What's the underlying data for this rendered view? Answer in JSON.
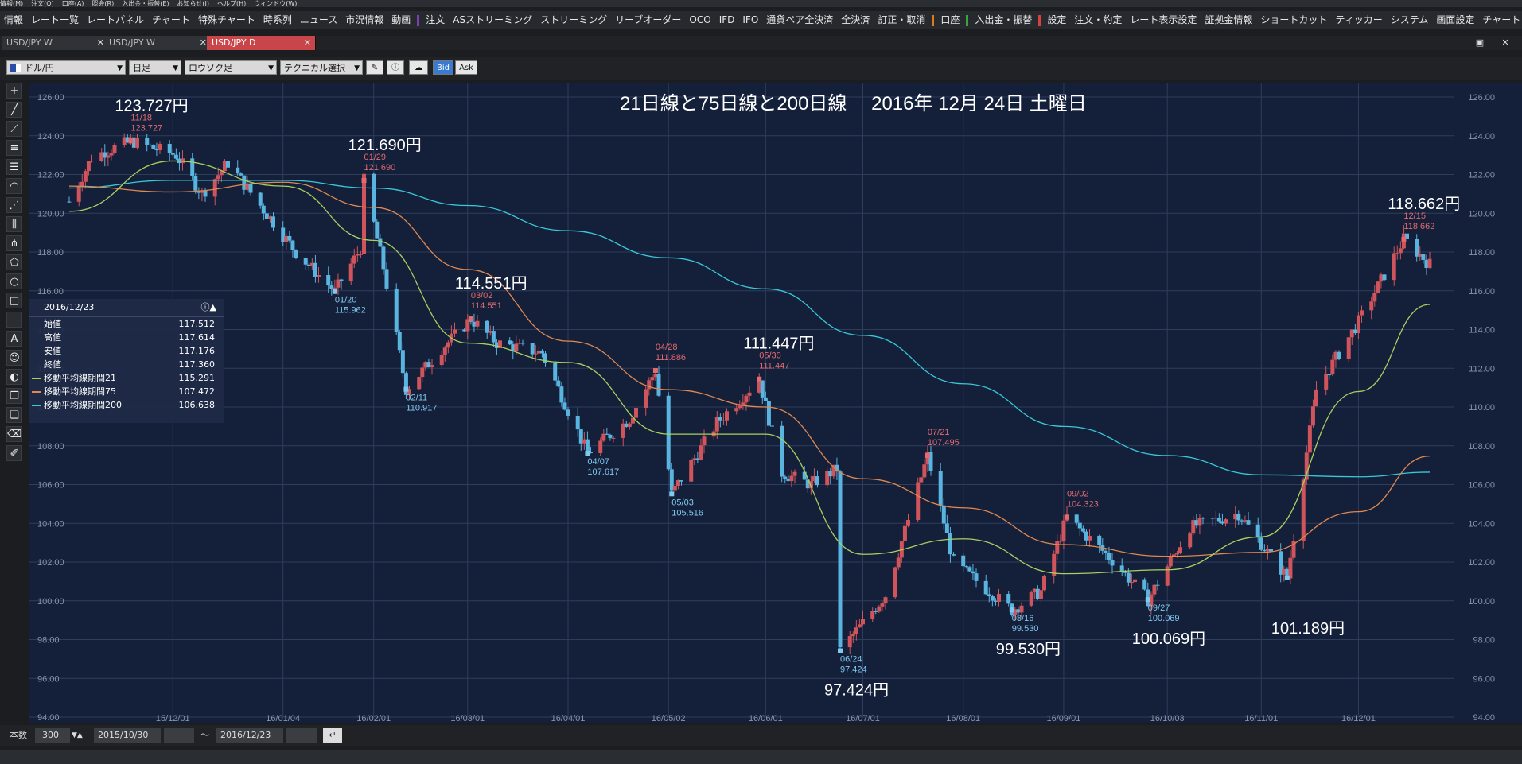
{
  "menu": [
    "情報(M)",
    "注文(O)",
    "口座(A)",
    "照会(R)",
    "入出金・振替(E)",
    "お知らせ(I)",
    "ヘルプ(H)",
    "ウィンドウ(W)"
  ],
  "toolbar": {
    "left": [
      "情報",
      "レート一覧",
      "レートパネル",
      "チャート",
      "特殊チャート",
      "時系列",
      "ニュース",
      "市況情報",
      "動画"
    ],
    "order": [
      "注文",
      "ASストリーミング",
      "ストリーミング",
      "リーブオーダー",
      "OCO",
      "IFD",
      "IFO",
      "通貨ペア全決済",
      "全決済",
      "訂正・取消"
    ],
    "account": [
      "口座"
    ],
    "transfer": [
      "入出金・振替"
    ],
    "settings": [
      "設定",
      "注文・約定",
      "レート表示設定",
      "証拠金情報",
      "ショートカット",
      "ティッカー",
      "システム",
      "画面設定",
      "チャート"
    ],
    "colors": {
      "order": "#7a3fb0",
      "account": "#e07a1a",
      "transfer": "#3aa53a",
      "settings": "#d94040"
    }
  },
  "tabs": [
    {
      "label": "USD/JPY W"
    },
    {
      "label": "USD/JPY W"
    },
    {
      "label": "USD/JPY D"
    }
  ],
  "controls": {
    "pair": "ドル/円",
    "period": "日足",
    "chart_type": "ロウソク足",
    "technical": "テクニカル選択",
    "bid": "Bid",
    "ask": "Ask"
  },
  "info_panel": {
    "date": "2016/12/23",
    "rows": [
      {
        "label": "始値",
        "value": "117.512"
      },
      {
        "label": "高値",
        "value": "117.614"
      },
      {
        "label": "安値",
        "value": "117.176"
      },
      {
        "label": "終値",
        "value": "117.360"
      },
      {
        "label": "移動平均線期間21",
        "value": "115.291"
      },
      {
        "label": "移動平均線期間75",
        "value": "107.472"
      },
      {
        "label": "移動平均線期間200",
        "value": "106.638"
      }
    ]
  },
  "bottom": {
    "count_label": "本数",
    "count": "300",
    "from": "2015/10/30",
    "tilde": "～",
    "to": "2016/12/23"
  },
  "colors": {
    "background": "#14203a",
    "grid": "#2e3d5c",
    "up": "#d0545b",
    "down": "#5ab4e0",
    "ma21": "#a8d060",
    "ma75": "#e08850",
    "ma200": "#38c8d8"
  },
  "chart_data": {
    "type": "candlestick",
    "title": "21日線と75日線と200日線　 2016年 12月 24日 土曜日",
    "y_range": [
      94,
      126
    ],
    "y_ticks": [
      "126.00",
      "124.00",
      "122.00",
      "120.00",
      "118.00",
      "116.00",
      "114.00",
      "112.00",
      "110.00",
      "108.00",
      "106.00",
      "104.00",
      "102.00",
      "100.00",
      "98.00",
      "96.00",
      "94.00"
    ],
    "x_ticks": [
      "15/12/01",
      "16/01/04",
      "16/02/01",
      "16/03/01",
      "16/04/01",
      "16/05/02",
      "16/06/01",
      "16/07/01",
      "16/08/01",
      "16/09/01",
      "16/10/03",
      "16/11/01",
      "16/12/01"
    ],
    "price_path": [
      [
        "2015-10-30",
        120.6
      ],
      [
        "2015-11-06",
        122.9
      ],
      [
        "2015-11-18",
        123.727
      ],
      [
        "2015-12-02",
        123.0
      ],
      [
        "2015-12-10",
        121.0
      ],
      [
        "2015-12-18",
        122.6
      ],
      [
        "2015-12-28",
        120.4
      ],
      [
        "2016-01-08",
        118.0
      ],
      [
        "2016-01-20",
        115.962
      ],
      [
        "2016-01-28",
        118.2
      ],
      [
        "2016-01-29",
        121.69
      ],
      [
        "2016-02-04",
        117.2
      ],
      [
        "2016-02-11",
        110.917
      ],
      [
        "2016-02-22",
        113.0
      ],
      [
        "2016-03-02",
        114.551
      ],
      [
        "2016-03-10",
        113.3
      ],
      [
        "2016-03-24",
        112.8
      ],
      [
        "2016-04-07",
        107.617
      ],
      [
        "2016-04-20",
        109.4
      ],
      [
        "2016-04-28",
        111.886
      ],
      [
        "2016-05-03",
        105.516
      ],
      [
        "2016-05-17",
        109.2
      ],
      [
        "2016-05-30",
        111.447
      ],
      [
        "2016-06-06",
        106.6
      ],
      [
        "2016-06-15",
        106.0
      ],
      [
        "2016-06-23",
        106.8
      ],
      [
        "2016-06-24",
        97.424
      ],
      [
        "2016-07-08",
        100.3
      ],
      [
        "2016-07-21",
        107.495
      ],
      [
        "2016-07-29",
        102.0
      ],
      [
        "2016-08-16",
        99.53
      ],
      [
        "2016-08-25",
        100.5
      ],
      [
        "2016-09-02",
        104.323
      ],
      [
        "2016-09-16",
        102.1
      ],
      [
        "2016-09-27",
        100.069
      ],
      [
        "2016-10-10",
        103.8
      ],
      [
        "2016-10-25",
        104.5
      ],
      [
        "2016-11-09",
        101.189
      ],
      [
        "2016-11-18",
        110.9
      ],
      [
        "2016-12-01",
        114.4
      ],
      [
        "2016-12-15",
        118.662
      ],
      [
        "2016-12-23",
        117.36
      ]
    ],
    "ma21": [
      [
        "2015-10-30",
        120.1
      ],
      [
        "2015-12-01",
        122.7
      ],
      [
        "2016-01-04",
        121.4
      ],
      [
        "2016-02-01",
        118.6
      ],
      [
        "2016-03-01",
        113.3
      ],
      [
        "2016-04-01",
        112.3
      ],
      [
        "2016-05-02",
        108.6
      ],
      [
        "2016-06-01",
        108.6
      ],
      [
        "2016-07-01",
        102.4
      ],
      [
        "2016-08-01",
        103.2
      ],
      [
        "2016-09-01",
        101.4
      ],
      [
        "2016-10-03",
        101.6
      ],
      [
        "2016-11-01",
        103.3
      ],
      [
        "2016-12-01",
        110.8
      ],
      [
        "2016-12-23",
        115.291
      ]
    ],
    "ma75": [
      [
        "2015-10-30",
        121.4
      ],
      [
        "2015-12-01",
        121.1
      ],
      [
        "2016-01-04",
        121.6
      ],
      [
        "2016-02-01",
        120.3
      ],
      [
        "2016-03-01",
        117.1
      ],
      [
        "2016-04-01",
        113.4
      ],
      [
        "2016-05-02",
        110.9
      ],
      [
        "2016-06-01",
        110.0
      ],
      [
        "2016-07-01",
        106.3
      ],
      [
        "2016-08-01",
        104.8
      ],
      [
        "2016-09-01",
        102.9
      ],
      [
        "2016-10-03",
        102.3
      ],
      [
        "2016-11-01",
        102.5
      ],
      [
        "2016-12-01",
        104.6
      ],
      [
        "2016-12-23",
        107.472
      ]
    ],
    "ma200": [
      [
        "2015-10-30",
        121.3
      ],
      [
        "2015-12-01",
        121.7
      ],
      [
        "2016-01-04",
        121.7
      ],
      [
        "2016-02-01",
        121.3
      ],
      [
        "2016-03-01",
        120.4
      ],
      [
        "2016-04-01",
        119.1
      ],
      [
        "2016-05-02",
        117.7
      ],
      [
        "2016-06-01",
        116.1
      ],
      [
        "2016-07-01",
        113.7
      ],
      [
        "2016-08-01",
        111.2
      ],
      [
        "2016-09-01",
        109.0
      ],
      [
        "2016-10-03",
        107.5
      ],
      [
        "2016-11-01",
        106.5
      ],
      [
        "2016-12-01",
        106.4
      ],
      [
        "2016-12-23",
        106.638
      ]
    ],
    "annotations": [
      {
        "date": "2015-11-18",
        "price": 123.727,
        "type": "high",
        "date_label": "11/18",
        "value_label": "123.727",
        "big": "123.727円"
      },
      {
        "date": "2016-01-20",
        "price": 115.962,
        "type": "low",
        "date_label": "01/20",
        "value_label": "115.962"
      },
      {
        "date": "2016-01-29",
        "price": 121.69,
        "type": "high",
        "date_label": "01/29",
        "value_label": "121.690",
        "big": "121.690円"
      },
      {
        "date": "2016-02-11",
        "price": 110.917,
        "type": "low",
        "date_label": "02/11",
        "value_label": "110.917"
      },
      {
        "date": "2016-03-02",
        "price": 114.551,
        "type": "high",
        "date_label": "03/02",
        "value_label": "114.551",
        "big": "114.551円"
      },
      {
        "date": "2016-04-07",
        "price": 107.617,
        "type": "low",
        "date_label": "04/07",
        "value_label": "107.617"
      },
      {
        "date": "2016-04-28",
        "price": 111.886,
        "type": "high",
        "date_label": "04/28",
        "value_label": "111.886"
      },
      {
        "date": "2016-05-03",
        "price": 105.516,
        "type": "low",
        "date_label": "05/03",
        "value_label": "105.516"
      },
      {
        "date": "2016-05-30",
        "price": 111.447,
        "type": "high",
        "date_label": "05/30",
        "value_label": "111.447",
        "big": "111.447円"
      },
      {
        "date": "2016-06-24",
        "price": 97.424,
        "type": "low",
        "date_label": "06/24",
        "value_label": "97.424",
        "big": "97.424円"
      },
      {
        "date": "2016-07-21",
        "price": 107.495,
        "type": "high",
        "date_label": "07/21",
        "value_label": "107.495"
      },
      {
        "date": "2016-08-16",
        "price": 99.53,
        "type": "low",
        "date_label": "08/16",
        "value_label": "99.530",
        "big": "99.530円"
      },
      {
        "date": "2016-09-02",
        "price": 104.323,
        "type": "high",
        "date_label": "09/02",
        "value_label": "104.323"
      },
      {
        "date": "2016-09-27",
        "price": 100.069,
        "type": "low",
        "date_label": "09/27",
        "value_label": "100.069",
        "big": "100.069円"
      },
      {
        "date": "2016-11-09",
        "price": 101.189,
        "type": "low",
        "big": "101.189円"
      },
      {
        "date": "2016-12-15",
        "price": 118.662,
        "type": "high",
        "date_label": "12/15",
        "value_label": "118.662",
        "big": "118.662円"
      }
    ]
  }
}
